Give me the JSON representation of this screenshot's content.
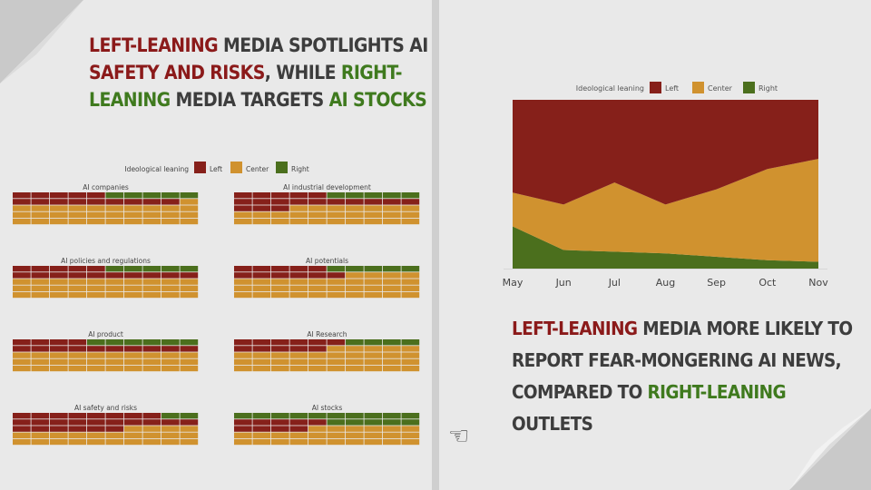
{
  "left_headline": {
    "p1": "LEFT-LEANING",
    "p2": " MEDIA SPOTLIGHTS AI ",
    "p3": "SAFETY AND RISKS",
    "p4": ", WHILE ",
    "p5": "RIGHT-LEANING",
    "p6": " MEDIA TARGETS ",
    "p7": "AI STOCKS"
  },
  "right_headline": {
    "p1": "LEFT-LEANING",
    "p2": " MEDIA MORE LIKELY TO REPORT FEAR-MONGERING AI NEWS, COMPARED TO ",
    "p3": "RIGHT-LEANING",
    "p4": " OUTLETS"
  },
  "colors": {
    "left": "#86201a",
    "center": "#d0922f",
    "right": "#4b6f1d",
    "red_text": "#8b1a1a",
    "green_text": "#3f7a1e"
  },
  "icons": {
    "pointer": "pointing-hand-icon",
    "fold": "page-fold-icon"
  },
  "pointer_glyph": "☜",
  "chart_data": [
    {
      "type": "waffle",
      "legend_title": "Ideological leaning",
      "legend": [
        "Left",
        "Center",
        "Right"
      ],
      "legend_placement": "top",
      "grid": [
        10,
        5
      ],
      "panels": [
        {
          "title": "AI companies",
          "left": 14,
          "center": 31,
          "right": 5
        },
        {
          "title": "AI industrial development",
          "left": 18,
          "center": 27,
          "right": 5
        },
        {
          "title": "AI policies and regulations",
          "left": 15,
          "center": 30,
          "right": 5
        },
        {
          "title": "AI potentials",
          "left": 11,
          "center": 34,
          "right": 5
        },
        {
          "title": "AI product",
          "left": 14,
          "center": 30,
          "right": 6
        },
        {
          "title": "AI Research",
          "left": 11,
          "center": 35,
          "right": 4
        },
        {
          "title": "AI safety and risks",
          "left": 24,
          "center": 24,
          "right": 2
        },
        {
          "title": "AI stocks",
          "left": 9,
          "center": 26,
          "right": 15
        }
      ]
    },
    {
      "type": "area",
      "stacked": true,
      "legend_title": "Ideological leaning",
      "legend": [
        "Left",
        "Center",
        "Right"
      ],
      "legend_placement": "top",
      "categories": [
        "May",
        "Jun",
        "Jul",
        "Aug",
        "Sep",
        "Oct",
        "Nov"
      ],
      "series": [
        {
          "name": "Right",
          "values": [
            25,
            11,
            10,
            9,
            7,
            5,
            4
          ]
        },
        {
          "name": "Center",
          "values": [
            20,
            27,
            41,
            29,
            40,
            54,
            61
          ]
        },
        {
          "name": "Left",
          "values": [
            55,
            62,
            49,
            62,
            53,
            41,
            35
          ]
        }
      ],
      "ylim": [
        0,
        100
      ]
    }
  ]
}
